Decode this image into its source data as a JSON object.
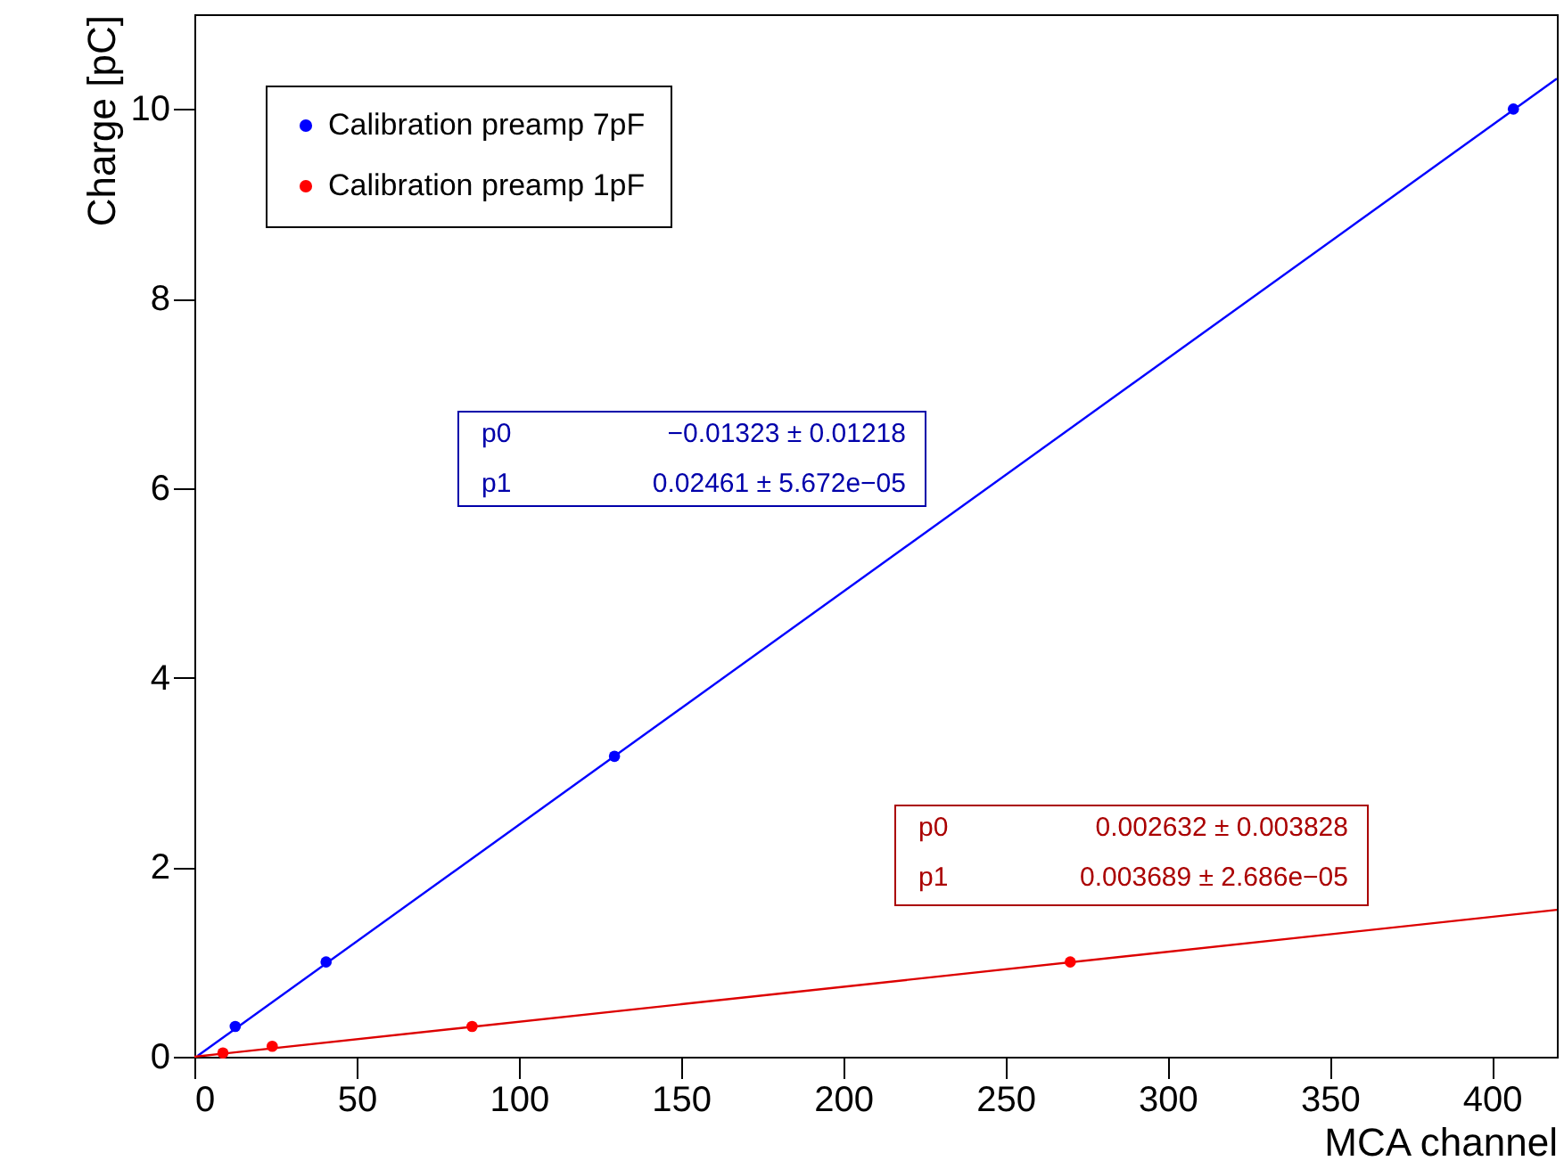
{
  "chart_data": {
    "type": "scatter",
    "xlabel": "MCA channel",
    "ylabel": "Charge [pC]",
    "xlim": [
      0,
      420
    ],
    "ylim": [
      0,
      11
    ],
    "xticks": [
      0,
      50,
      100,
      150,
      200,
      250,
      300,
      350,
      400
    ],
    "yticks": [
      0,
      2,
      4,
      6,
      8,
      10
    ],
    "legend": "top left",
    "marker": "circle",
    "grid": false,
    "series": [
      {
        "name": "Calibration preamp 7pF",
        "color": "#0000ff",
        "x": [
          12.6,
          40.6,
          129.5,
          406.6
        ],
        "values": [
          0.32,
          1.0,
          3.17,
          10.0
        ]
      },
      {
        "name": "Calibration preamp 1pF",
        "color": "#ff0000",
        "x": [
          8.8,
          24,
          85.6,
          270
        ],
        "values": [
          0.04,
          0.11,
          0.32,
          1.0
        ]
      },
      {
        "type": "line",
        "marker": "none",
        "line_style": "solid",
        "color": "#0000ff",
        "x": [
          1,
          420
        ],
        "values": [
          0.01,
          10.32
        ]
      },
      {
        "type": "line",
        "marker": "none",
        "line_style": "solid",
        "color": "#dd0000",
        "x": [
          0,
          420
        ],
        "values": [
          0.0,
          1.55
        ]
      }
    ],
    "annotations": [
      "p0",
      "−0.01323 ± 0.01218",
      "p1",
      "0.02461 ± 5.672e−05",
      "p0",
      "0.002632 ± 0.003828",
      "p1",
      "0.003689 ± 2.686e−05"
    ]
  }
}
